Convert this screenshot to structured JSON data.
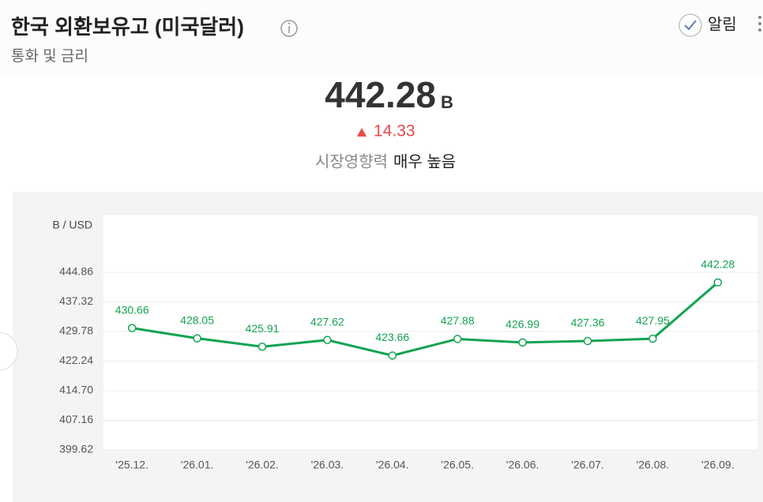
{
  "header": {
    "title": "한국 외환보유고 (미국달러)",
    "subtitle": "통화 및 금리",
    "alert": "알림"
  },
  "summary": {
    "value": "442.28",
    "unit": "B",
    "change": "14.33",
    "impact_label": "시장영향력",
    "impact_value": "매우 높음"
  },
  "chart_data": {
    "type": "line",
    "y_unit": "B / USD",
    "categories": [
      "'25.12.",
      "'26.01.",
      "'26.02.",
      "'26.03.",
      "'26.04.",
      "'26.05.",
      "'26.06.",
      "'26.07.",
      "'26.08.",
      "'26.09."
    ],
    "series": [
      {
        "color": "#13a351",
        "values": [
          430.66,
          428.05,
          425.91,
          427.62,
          423.66,
          427.88,
          426.99,
          427.36,
          427.95,
          442.28
        ]
      }
    ],
    "ylim": [
      399.62,
      459.54
    ],
    "yticks": [
      399.62,
      407.16,
      {
        "value": 414.7,
        "label": "414.70"
      },
      422.24,
      429.78,
      437.32,
      444.86
    ],
    "grid": true
  }
}
